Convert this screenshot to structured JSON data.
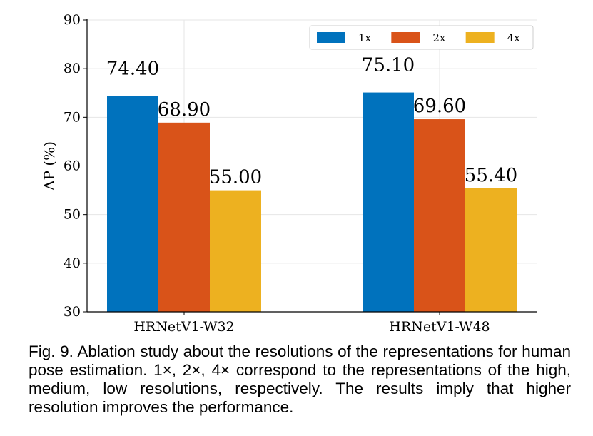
{
  "chart_data": {
    "type": "bar",
    "categories": [
      "HRNetV1-W32",
      "HRNetV1-W48"
    ],
    "series": [
      {
        "name": "1x",
        "values": [
          74.4,
          75.1
        ],
        "labels": [
          "74.40",
          "75.10"
        ],
        "color": "#0072bd"
      },
      {
        "name": "2x",
        "values": [
          68.9,
          69.6
        ],
        "labels": [
          "68.90",
          "69.60"
        ],
        "color": "#d95319"
      },
      {
        "name": "4x",
        "values": [
          55.0,
          55.4
        ],
        "labels": [
          "55.00",
          "55.40"
        ],
        "color": "#edb120"
      }
    ],
    "xlabel": "",
    "ylabel": "AP (%)",
    "ylim": [
      30,
      90
    ],
    "yticks": [
      "30",
      "40",
      "50",
      "60",
      "70",
      "80",
      "90"
    ],
    "grid": true,
    "legend_position": "top-right"
  },
  "caption": "Fig. 9. Ablation study about the resolutions of the representations for human pose estimation. 1×, 2×, 4× correspond to the representations of the high, medium, low resolutions, respectively.  The results imply that higher resolution improves the performance."
}
